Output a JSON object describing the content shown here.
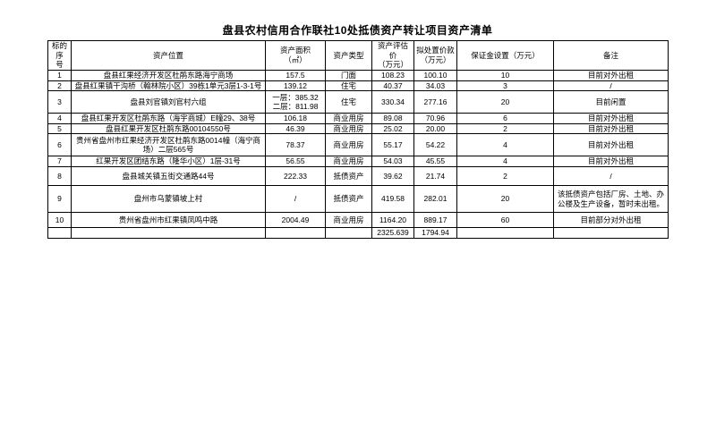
{
  "page": {
    "title": "盘县农村信用合作联社10处抵债资产转让项目资产清单"
  },
  "table": {
    "headers": [
      "标的序\n号",
      "资产位置",
      "资产面积\n（㎡）",
      "资产类型",
      "资产评估价\n（万元）",
      "拟处置价款\n（万元）",
      "保证金设置（万元）",
      "备注"
    ],
    "rows": [
      [
        "1",
        "盘县红果经济开发区杜鹃东路海宁商场",
        "157.5",
        "门面",
        "108.23",
        "100.10",
        "10",
        "目前对外出租"
      ],
      [
        "2",
        "盘县红果镇干沟桥（翰林院小区）39栋1单元3层1-3-1号",
        "139.12",
        "住宅",
        "40.37",
        "34.03",
        "3",
        "/"
      ],
      [
        "3",
        "盘县刘官镇刘官村六组",
        "一层：385.32\n二层：811.98",
        "住宅",
        "330.34",
        "277.16",
        "20",
        "目前闲置"
      ],
      [
        "4",
        "盘县红果开发区杜鹃东路（海宇商城）E幢29、38号",
        "106.18",
        "商业用房",
        "89.08",
        "70.96",
        "6",
        "目前对外出租"
      ],
      [
        "5",
        "盘县红果开发区杜鹃东路00104550号",
        "46.39",
        "商业用房",
        "25.02",
        "20.00",
        "2",
        "目前对外出租"
      ],
      [
        "6",
        "贵州省盘州市红果经济开发区杜鹃东路0014幢（海宁商场）二层565号",
        "78.37",
        "商业用房",
        "55.17",
        "54.22",
        "4",
        "目前对外出租"
      ],
      [
        "7",
        "红果开发区团结东路（隆华小区）1层-31号",
        "56.55",
        "商业用房",
        "54.03",
        "45.55",
        "4",
        "目前对外出租"
      ],
      [
        "8",
        "盘县城关镇五街交通路44号",
        "222.33",
        "抵债资产",
        "39.62",
        "21.74",
        "2",
        "/"
      ],
      [
        "9",
        "盘州市乌蒙镇坡上村",
        "/",
        "抵债资产",
        "419.58",
        "282.01",
        "20",
        "该抵债资产包括厂房、土地、办公楼及生产设备，暂时未出租。"
      ],
      [
        "10",
        "贵州省盘州市红果镇凤鸣中路",
        "2004.49",
        "商业用房",
        "1164.20",
        "889.17",
        "60",
        "目前部分对外出租"
      ],
      [
        "",
        "",
        "",
        "",
        "2325.639",
        "1794.94",
        "",
        ""
      ]
    ]
  }
}
